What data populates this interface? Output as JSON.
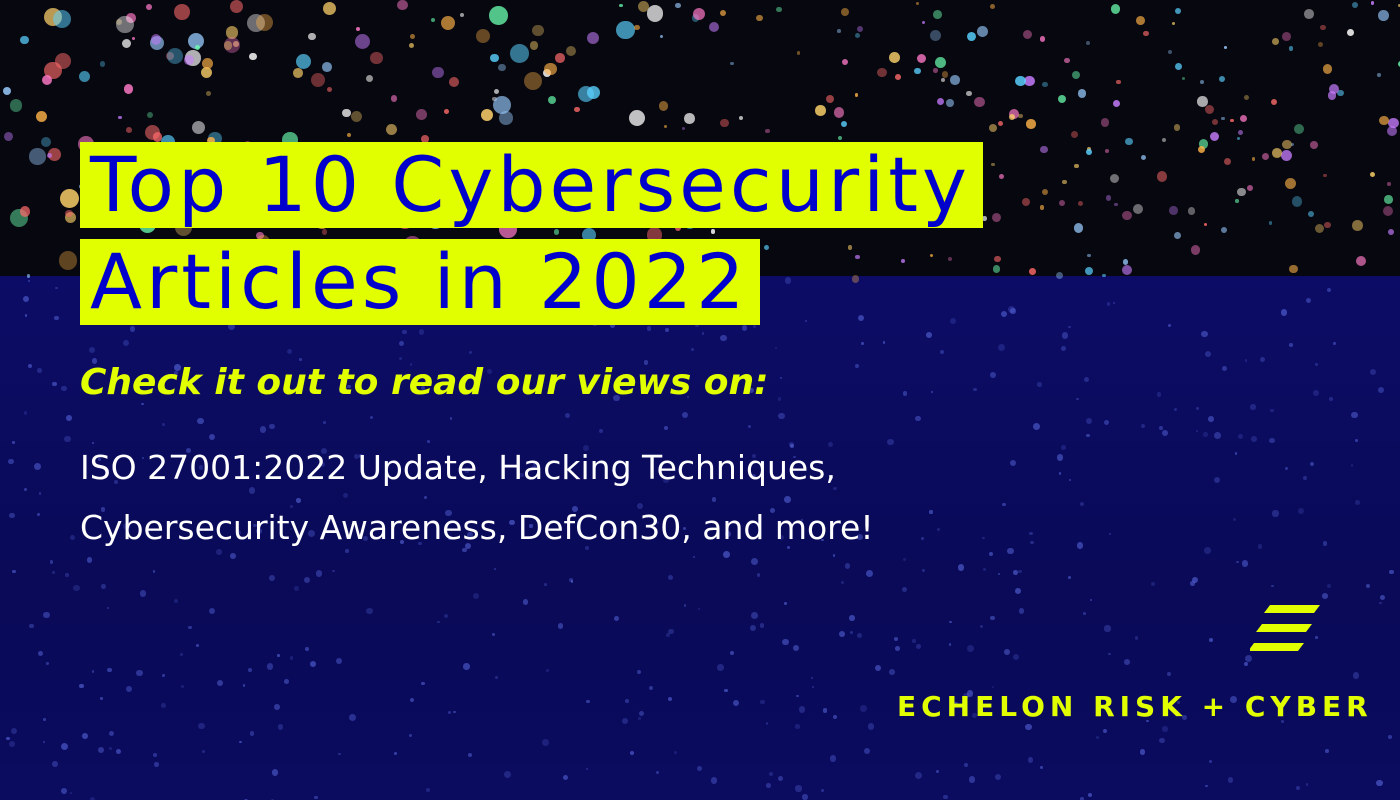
{
  "title": {
    "line1": "Top 10 Cybersecurity",
    "line2": "Articles in 2022"
  },
  "subtitle": "Check it out to read our views on:",
  "body": {
    "line1": "ISO 27001:2022 Update, Hacking Techniques,",
    "line2": "Cybersecurity Awareness, DefCon30, and more!"
  },
  "logo": {
    "name": "ECHELON RISK + CYBER",
    "icon": "echelon-stripes-logo"
  },
  "colors": {
    "accent": "#e2ff00",
    "title_text": "#0000cc",
    "background": "#0b0b5c"
  }
}
